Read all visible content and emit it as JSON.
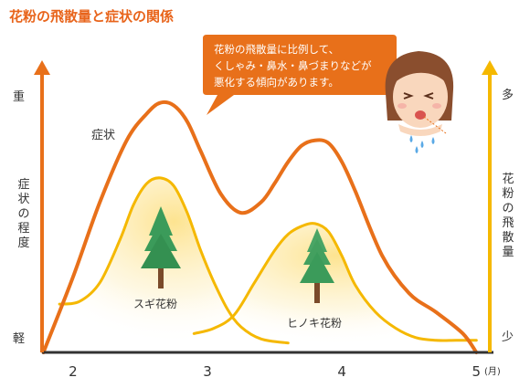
{
  "title": "花粉の飛散量と症状の関係",
  "callout": {
    "lines": [
      "花粉の飛散量に比例して、",
      "くしゃみ・鼻水・鼻づまりなどが",
      "悪化する傾向があります。"
    ]
  },
  "colors": {
    "title": "#e8641b",
    "symptom": "#e8701a",
    "pollen": "#f5b800",
    "glow": "#fde9a8",
    "axis": "#333333",
    "tree": "#3b9b5a",
    "trunk": "#7a4a2a"
  },
  "icons": {
    "face": "sneezing-woman-icon",
    "tree": "cedar-tree-icon",
    "axis_arrow": "arrow-up-icon"
  },
  "chart_data": {
    "type": "line",
    "x_ticks": [
      "2",
      "3",
      "4",
      "5"
    ],
    "x_unit": "(月)",
    "left_axis": {
      "label": "症状の程度",
      "top": "重",
      "bottom": "軽"
    },
    "right_axis": {
      "label": "花粉の飛散量",
      "top": "多",
      "bottom": "少"
    },
    "xlim": [
      1.77,
      5.1
    ],
    "ylim": [
      0,
      10
    ],
    "series": [
      {
        "name": "症状",
        "axis": "left",
        "x": [
          1.78,
          2.0,
          2.2,
          2.4,
          2.55,
          2.65,
          2.75,
          2.85,
          2.95,
          3.1,
          3.25,
          3.4,
          3.5,
          3.6,
          3.7,
          3.8,
          3.9,
          4.0,
          4.1,
          4.3,
          4.5,
          4.7,
          4.9,
          5.0
        ],
        "y": [
          0.0,
          2.8,
          5.6,
          7.9,
          8.9,
          9.3,
          9.2,
          8.6,
          7.5,
          5.9,
          5.2,
          5.6,
          6.3,
          7.1,
          7.7,
          7.9,
          7.8,
          7.1,
          6.0,
          3.6,
          2.2,
          1.5,
          0.7,
          0.0
        ]
      },
      {
        "name": "スギ花粉",
        "axis": "right",
        "x": [
          1.9,
          2.05,
          2.2,
          2.35,
          2.45,
          2.55,
          2.65,
          2.75,
          2.85,
          2.95,
          3.05,
          3.15,
          3.25,
          3.4,
          3.6
        ],
        "y": [
          1.8,
          1.9,
          2.6,
          4.2,
          5.5,
          6.3,
          6.5,
          6.2,
          5.2,
          3.8,
          2.6,
          1.6,
          0.95,
          0.5,
          0.35
        ]
      },
      {
        "name": "ヒノキ花粉",
        "axis": "right",
        "x": [
          2.9,
          3.05,
          3.2,
          3.35,
          3.5,
          3.6,
          3.7,
          3.8,
          3.9,
          4.0,
          4.1,
          4.25,
          4.4,
          4.55,
          4.7,
          4.85,
          5.0
        ],
        "y": [
          0.7,
          0.9,
          1.4,
          2.6,
          3.8,
          4.4,
          4.7,
          4.8,
          4.5,
          3.6,
          2.5,
          1.5,
          0.9,
          0.55,
          0.45,
          0.45,
          0.45
        ]
      }
    ]
  }
}
